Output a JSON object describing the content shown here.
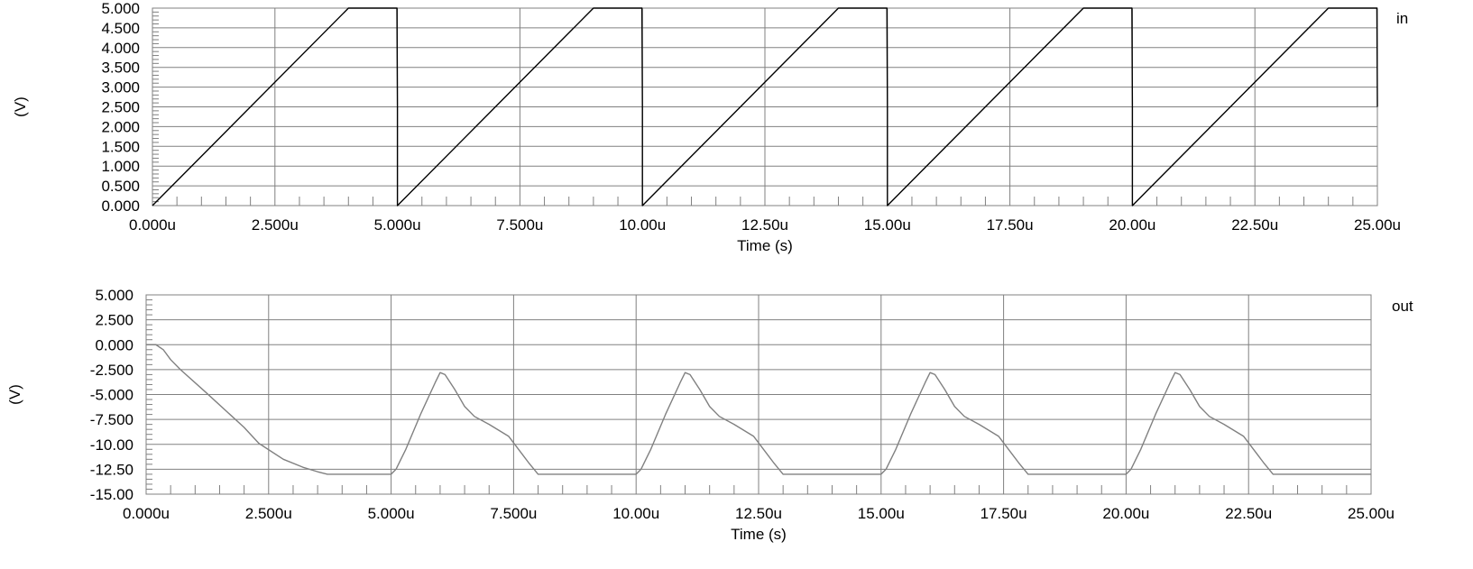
{
  "chart_data": [
    {
      "type": "line",
      "series": [
        {
          "name": "in",
          "x": [
            0,
            4,
            4.99,
            5,
            5,
            9,
            9.99,
            10,
            10,
            14,
            14.99,
            15,
            15,
            19,
            19.99,
            20,
            20,
            24,
            24.99,
            25
          ],
          "y": [
            0,
            5,
            5,
            2.5,
            0,
            5,
            5,
            2.5,
            0,
            5,
            5,
            2.5,
            0,
            5,
            5,
            2.5,
            0,
            5,
            5,
            2.5
          ]
        }
      ],
      "xlabel": "Time (s)",
      "ylabel": "(V)",
      "xlim": [
        0,
        25
      ],
      "ylim": [
        0,
        5
      ],
      "xticks": [
        "0.000u",
        "2.500u",
        "5.000u",
        "7.500u",
        "10.00u",
        "12.50u",
        "15.00u",
        "17.50u",
        "20.00u",
        "22.50u",
        "25.00u"
      ],
      "yticks": [
        "0.000",
        "0.500",
        "1.000",
        "1.500",
        "2.000",
        "2.500",
        "3.000",
        "3.500",
        "4.000",
        "4.500",
        "5.000"
      ],
      "grid": true,
      "colors": {
        "line": "#000000",
        "grid": "#808080",
        "frame": "#808080",
        "label": "#000000"
      }
    },
    {
      "type": "line",
      "series": [
        {
          "name": "out",
          "x": [
            0,
            0.2,
            0.35,
            0.5,
            0.7,
            1.2,
            2.0,
            2.3,
            2.8,
            3.2,
            3.5,
            3.7,
            5.0,
            5.1,
            5.3,
            5.6,
            5.9,
            6.0,
            6.1,
            6.3,
            6.5,
            6.7,
            7.0,
            7.4,
            7.8,
            8.0,
            10.0,
            10.1,
            10.3,
            10.6,
            10.9,
            11.0,
            11.1,
            11.3,
            11.5,
            11.7,
            12.0,
            12.4,
            12.8,
            13.0,
            15.0,
            15.1,
            15.3,
            15.6,
            15.9,
            16.0,
            16.1,
            16.3,
            16.5,
            16.7,
            17.0,
            17.4,
            17.8,
            18.0,
            20.0,
            20.1,
            20.3,
            20.6,
            20.9,
            21.0,
            21.1,
            21.3,
            21.5,
            21.7,
            22.0,
            22.4,
            22.8,
            23.0,
            25.0
          ],
          "y": [
            0,
            0,
            -0.5,
            -1.5,
            -2.5,
            -4.7,
            -8.3,
            -9.9,
            -11.5,
            -12.3,
            -12.75,
            -13,
            -13,
            -12.5,
            -10.5,
            -7,
            -3.8,
            -2.8,
            -3,
            -4.5,
            -6.2,
            -7.2,
            -8,
            -9.2,
            -11.8,
            -13,
            -13,
            -12.5,
            -10.5,
            -7,
            -3.8,
            -2.8,
            -3,
            -4.5,
            -6.2,
            -7.2,
            -8,
            -9.2,
            -11.8,
            -13,
            -13,
            -12.5,
            -10.5,
            -7,
            -3.8,
            -2.8,
            -3,
            -4.5,
            -6.2,
            -7.2,
            -8,
            -9.2,
            -11.8,
            -13,
            -13,
            -12.5,
            -10.5,
            -7,
            -3.8,
            -2.8,
            -3,
            -4.5,
            -6.2,
            -7.2,
            -8,
            -9.2,
            -11.8,
            -13,
            -13
          ]
        }
      ],
      "xlabel": "Time (s)",
      "ylabel": "(V)",
      "xlim": [
        0,
        25
      ],
      "ylim": [
        -15,
        5
      ],
      "xticks": [
        "0.000u",
        "2.500u",
        "5.000u",
        "7.500u",
        "10.00u",
        "12.50u",
        "15.00u",
        "17.50u",
        "20.00u",
        "22.50u",
        "25.00u"
      ],
      "yticks": [
        "-15.00",
        "-12.50",
        "-10.00",
        "-7.500",
        "-5.000",
        "-2.500",
        "0.000",
        "2.500",
        "5.000"
      ],
      "grid": true,
      "colors": {
        "line": "#808080",
        "grid": "#808080",
        "frame": "#808080",
        "label": "#808080"
      }
    }
  ]
}
